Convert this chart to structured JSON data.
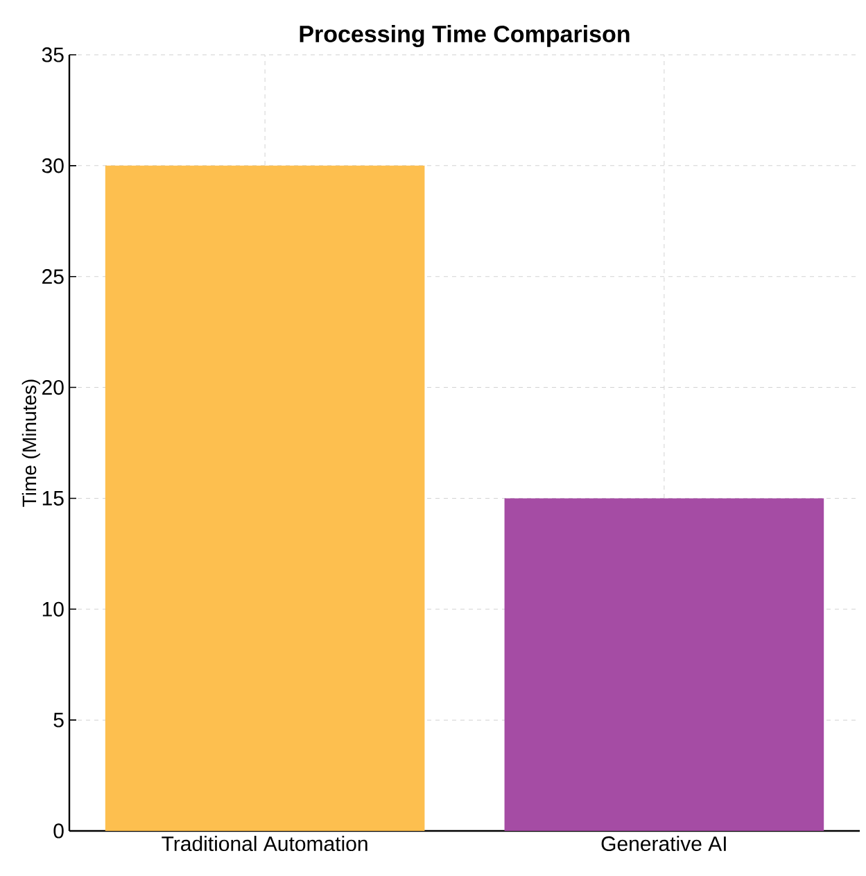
{
  "chart_data": {
    "type": "bar",
    "title": "Processing Time Comparison",
    "ylabel": "Time (Minutes)",
    "categories": [
      "Traditional Automation",
      "Generative AI"
    ],
    "values": [
      30,
      15
    ],
    "colors": [
      "#fdbf4f",
      "#a54ca4"
    ],
    "ylim": [
      0,
      35
    ],
    "yticks": [
      0,
      5,
      10,
      15,
      20,
      25,
      30,
      35
    ],
    "grid": true
  }
}
